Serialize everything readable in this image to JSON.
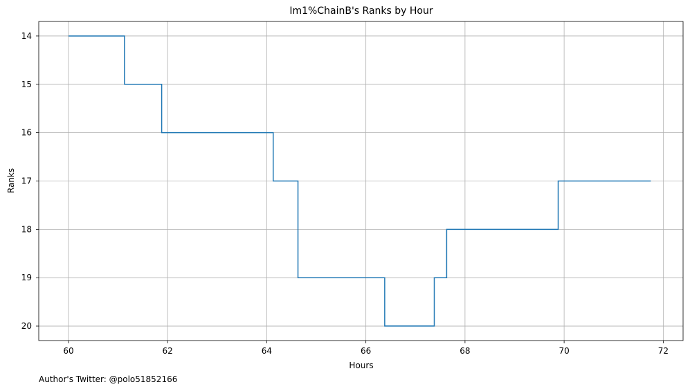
{
  "chart_data": {
    "type": "line",
    "step": "post",
    "title": "Im1%ChainB's Ranks by Hour",
    "xlabel": "Hours",
    "ylabel": "Ranks",
    "xlim": [
      59.4,
      72.4
    ],
    "ylim": [
      20.3,
      13.7
    ],
    "y_inverted": true,
    "xticks": [
      60,
      62,
      64,
      66,
      68,
      70,
      72
    ],
    "yticks": [
      14,
      15,
      16,
      17,
      18,
      19,
      20
    ],
    "grid": true,
    "series": [
      {
        "color": "#1f77b4",
        "x": [
          60.0,
          61.13,
          61.88,
          64.13,
          64.63,
          66.38,
          67.38,
          67.63,
          69.88,
          71.75
        ],
        "y": [
          14,
          15,
          16,
          17,
          19,
          20,
          19,
          18,
          17,
          17
        ]
      }
    ]
  },
  "footer": {
    "credit": "Author's Twitter: @polo51852166"
  }
}
